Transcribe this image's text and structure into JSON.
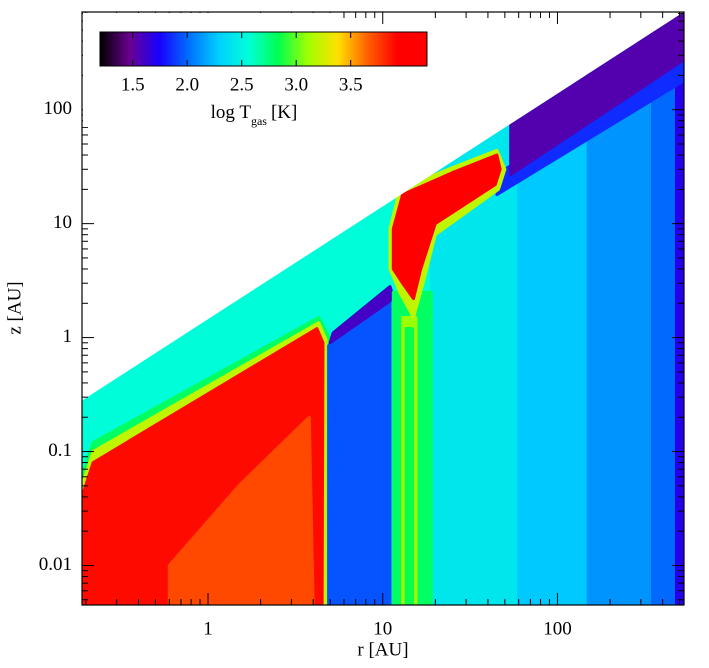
{
  "chart_data": {
    "type": "contour",
    "xlabel": "r [AU]",
    "ylabel": "z [AU]",
    "xscale": "log",
    "yscale": "log",
    "xlim": [
      0.19,
      530
    ],
    "ylim": [
      0.0045,
      720
    ],
    "xticks": [
      1,
      10,
      100
    ],
    "yticks": [
      0.01,
      0.1,
      1,
      10,
      100
    ],
    "colorbar": {
      "label": {
        "main": "log T",
        "sub": "gas",
        "unit": "[K]"
      },
      "clim": [
        1.2,
        4.2
      ],
      "ticks": [
        1.5,
        {
          "value": 2,
          "label": "2.0"
        },
        2.5,
        {
          "value": 3,
          "label": "3.0"
        },
        3.5
      ],
      "colormap": [
        "#000000",
        "#6a0090",
        "#1800ff",
        "#0070ff",
        "#00d0ff",
        "#00ffd8",
        "#00ff50",
        "#a0ff00",
        "#ffe000",
        "#ff6000",
        "#ff0000",
        "#ff0000"
      ]
    },
    "surface": {
      "r": [
        0.19,
        530
      ],
      "z": [
        0.28,
        720
      ]
    },
    "regions": [
      {
        "value": 2.55,
        "r": [
          0.19,
          530,
          530,
          0.19
        ],
        "z": [
          0.0045,
          0.0045,
          720,
          0.28
        ]
      },
      {
        "value": 2.42,
        "r": [
          19,
          60,
          60,
          19
        ],
        "z": [
          0.0045,
          0.0045,
          720,
          720
        ]
      },
      {
        "value": 2.27,
        "r": [
          60,
          150,
          150,
          60
        ],
        "z": [
          0.0045,
          0.0045,
          720,
          720
        ]
      },
      {
        "value": 2.12,
        "r": [
          150,
          350,
          350,
          150
        ],
        "z": [
          0.0045,
          0.0045,
          720,
          720
        ]
      },
      {
        "value": 2.0,
        "r": [
          350,
          480,
          480,
          350
        ],
        "z": [
          0.0045,
          0.0045,
          720,
          720
        ]
      },
      {
        "value": 1.7,
        "r": [
          480,
          530,
          530,
          480
        ],
        "z": [
          0.0045,
          0.0045,
          720,
          720
        ]
      },
      {
        "value": 1.85,
        "r": [
          45,
          530,
          530,
          50
        ],
        "z": [
          18,
          180,
          290,
          30
        ]
      },
      {
        "value": 1.55,
        "r": [
          54,
          530,
          530,
          54
        ],
        "z": [
          27,
          275,
          720,
          80
        ]
      },
      {
        "value": 2.8,
        "r": [
          0.19,
          0.19,
          0.22,
          4.3,
          4.95,
          4.95
        ],
        "z": [
          0.0045,
          0.06,
          0.12,
          1.5,
          1.0,
          0.0045
        ]
      },
      {
        "value": 3.2,
        "r": [
          0.19,
          0.19,
          0.22,
          4.3,
          4.75,
          4.75
        ],
        "z": [
          0.0045,
          0.05,
          0.1,
          1.35,
          0.95,
          0.0045
        ]
      },
      {
        "value": 3.9,
        "r": [
          0.19,
          0.19,
          0.22,
          4.2,
          4.55,
          4.5
        ],
        "z": [
          0.0045,
          0.04,
          0.08,
          1.2,
          0.9,
          0.0045
        ]
      },
      {
        "value": 3.72,
        "r": [
          0.6,
          0.6,
          1.5,
          3.8,
          4.0
        ],
        "z": [
          0.0045,
          0.01,
          0.05,
          0.2,
          0.0045
        ]
      },
      {
        "value": 1.95,
        "r": [
          4.9,
          4.9,
          11,
          11
        ],
        "z": [
          0.0045,
          0.85,
          2.4,
          0.0045
        ]
      },
      {
        "value": 1.6,
        "r": [
          5,
          5.2,
          11,
          11.5,
          11
        ],
        "z": [
          0.9,
          1.1,
          2.8,
          2.3,
          2.1
        ]
      },
      {
        "value": 2.8,
        "r": [
          11.5,
          11.5,
          19,
          19
        ],
        "z": [
          0.0045,
          2.5,
          2.5,
          0.0045
        ]
      },
      {
        "value": 3.1,
        "r": [
          13,
          13,
          15.5,
          15.5
        ],
        "z": [
          0.0045,
          1.5,
          1.5,
          0.0045
        ]
      },
      {
        "value": 2.85,
        "r": [
          13.6,
          13.6,
          14.8,
          14.8
        ],
        "z": [
          0.0045,
          1.2,
          1.2,
          0.0045
        ]
      },
      {
        "value": 3.2,
        "r": [
          11,
          11,
          12.5,
          25,
          45,
          50,
          46,
          20,
          17,
          15,
          12.5
        ],
        "z": [
          4,
          9,
          20,
          31,
          44,
          30,
          20,
          8,
          3,
          1.5,
          2.5
        ]
      },
      {
        "value": 3.95,
        "r": [
          11.5,
          11.5,
          13,
          25,
          45,
          47,
          44,
          20,
          16.5,
          15,
          13
        ],
        "z": [
          4,
          9,
          18,
          28,
          40,
          30,
          22,
          10,
          4,
          2.2,
          3
        ]
      }
    ]
  }
}
